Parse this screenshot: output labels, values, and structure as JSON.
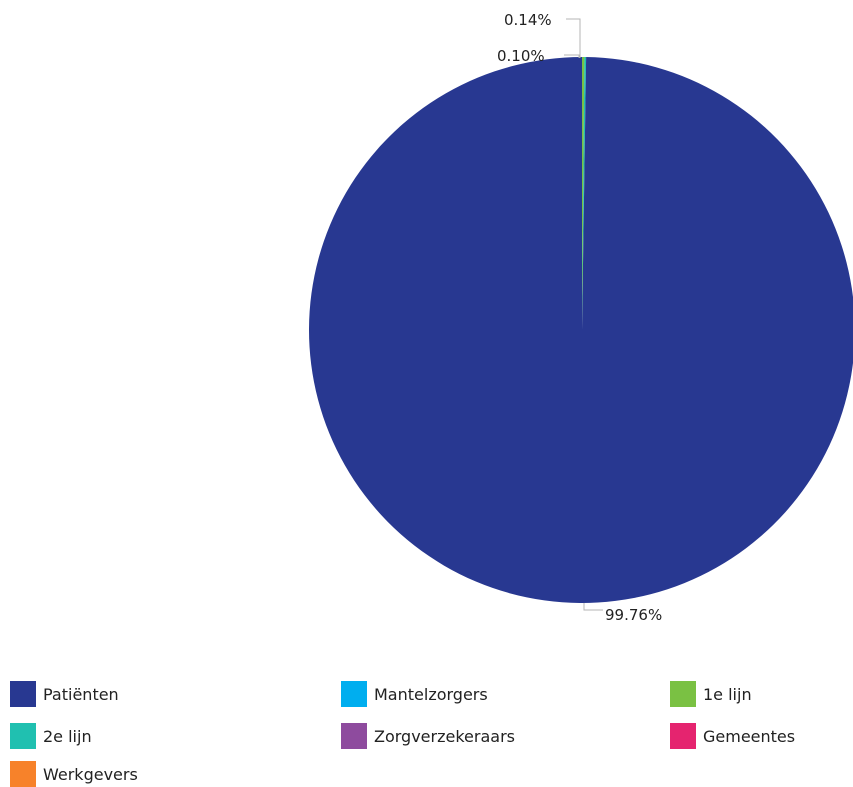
{
  "chart_data": {
    "type": "pie",
    "title": "",
    "slices": [
      {
        "name": "Patiënten",
        "value": 99.76,
        "label": "99.76%",
        "color": "#283891"
      },
      {
        "name": "Mantelzorgers",
        "value": 0,
        "label": "",
        "color": "#00aeef"
      },
      {
        "name": "1e lijn",
        "value": 0.14,
        "label": "0.14%",
        "color": "#7ac143"
      },
      {
        "name": "2e lijn",
        "value": 0.1,
        "label": "0.10%",
        "color": "#20c0b0"
      },
      {
        "name": "Zorgverzekeraars",
        "value": 0,
        "label": "",
        "color": "#8e4b9e"
      },
      {
        "name": "Gemeentes",
        "value": 0,
        "label": "",
        "color": "#e5246f"
      },
      {
        "name": "Werkgevers",
        "value": 0,
        "label": "",
        "color": "#f7822a"
      }
    ],
    "legend_position": "bottom"
  }
}
